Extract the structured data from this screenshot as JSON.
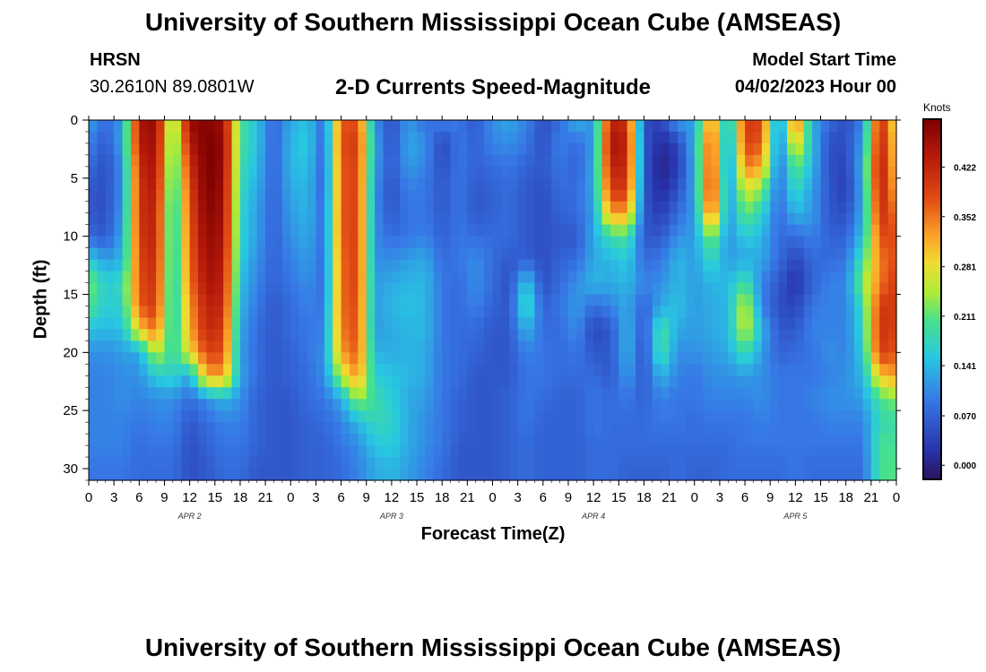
{
  "page": {
    "title": "University of Southern Mississippi Ocean Cube (AMSEAS)",
    "footer_title": "University of Southern Mississippi Ocean Cube (AMSEAS)",
    "station": "HRSN",
    "coordinates": "30.2610N  89.0801W",
    "subtitle": "2-D Currents Speed-Magnitude",
    "model_start_label": "Model Start Time",
    "model_start_value": "04/02/2023 Hour 00"
  },
  "chart_data": {
    "type": "heatmap",
    "title": "2-D Currents Speed-Magnitude",
    "xlabel": "Forecast Time(Z)",
    "ylabel": "Depth (ft)",
    "xlim": [
      0,
      96
    ],
    "ylim": [
      0,
      31
    ],
    "x_ticks": [
      "0",
      "3",
      "6",
      "9",
      "12",
      "15",
      "18",
      "21",
      "0",
      "3",
      "6",
      "9",
      "12",
      "15",
      "18",
      "21",
      "0",
      "3",
      "6",
      "9",
      "12",
      "15",
      "18",
      "21",
      "0",
      "3",
      "6",
      "9",
      "12",
      "15",
      "18",
      "21",
      "0"
    ],
    "y_ticks": [
      "0",
      "5",
      "10",
      "15",
      "20",
      "25",
      "30"
    ],
    "date_labels": [
      {
        "hour": 12,
        "text": "APR 2"
      },
      {
        "hour": 36,
        "text": "APR 3"
      },
      {
        "hour": 60,
        "text": "APR 4"
      },
      {
        "hour": 84,
        "text": "APR 5"
      }
    ],
    "colorbar": {
      "unit": "Knots",
      "range": [
        -0.02,
        0.49
      ],
      "ticks": [
        "0.000",
        "0.070",
        "0.141",
        "0.211",
        "0.281",
        "0.352",
        "0.422"
      ]
    },
    "grid_hours": [
      0,
      2,
      4,
      6,
      8,
      10,
      12,
      14,
      16,
      18,
      20,
      22,
      24,
      26,
      28,
      30,
      32,
      34,
      36,
      38,
      40,
      42,
      44,
      46,
      48,
      50,
      52,
      54,
      56,
      58,
      60,
      62,
      64,
      66,
      68,
      70,
      72,
      74,
      76,
      78,
      80,
      82,
      84,
      86,
      88,
      90,
      92,
      94,
      96
    ],
    "grid_depths_ft": [
      0,
      2,
      4,
      6,
      8,
      10,
      12,
      14,
      16,
      18,
      20,
      22,
      24,
      26,
      28,
      30
    ],
    "grid_knots": [
      [
        0.13,
        0.08,
        0.12,
        0.45,
        0.47,
        0.2,
        0.47,
        0.48,
        0.46,
        0.2,
        0.15,
        0.07,
        0.13,
        0.15,
        0.08,
        0.37,
        0.38,
        0.11,
        0.05,
        0.12,
        0.08,
        0.1,
        0.09,
        0.06,
        0.11,
        0.13,
        0.1,
        0.05,
        0.08,
        0.14,
        0.11,
        0.43,
        0.41,
        0.05,
        0.04,
        0.12,
        0.12,
        0.36,
        0.12,
        0.4,
        0.39,
        0.08,
        0.39,
        0.13,
        0.08,
        0.05,
        0.1,
        0.43,
        0.26
      ],
      [
        0.1,
        0.06,
        0.13,
        0.44,
        0.46,
        0.18,
        0.44,
        0.49,
        0.47,
        0.2,
        0.15,
        0.07,
        0.14,
        0.16,
        0.07,
        0.38,
        0.4,
        0.13,
        0.05,
        0.13,
        0.11,
        0.04,
        0.09,
        0.07,
        0.1,
        0.11,
        0.09,
        0.05,
        0.1,
        0.08,
        0.12,
        0.45,
        0.43,
        0.06,
        0.01,
        0.04,
        0.14,
        0.4,
        0.1,
        0.39,
        0.37,
        0.08,
        0.3,
        0.15,
        0.05,
        0.05,
        0.12,
        0.44,
        0.28
      ],
      [
        0.08,
        0.05,
        0.11,
        0.42,
        0.45,
        0.17,
        0.41,
        0.49,
        0.47,
        0.19,
        0.14,
        0.07,
        0.14,
        0.15,
        0.07,
        0.37,
        0.39,
        0.12,
        0.06,
        0.12,
        0.1,
        0.05,
        0.09,
        0.07,
        0.08,
        0.09,
        0.07,
        0.06,
        0.09,
        0.07,
        0.13,
        0.43,
        0.42,
        0.06,
        0.0,
        0.03,
        0.13,
        0.41,
        0.09,
        0.35,
        0.32,
        0.08,
        0.22,
        0.14,
        0.05,
        0.04,
        0.14,
        0.45,
        0.29
      ],
      [
        0.06,
        0.05,
        0.11,
        0.41,
        0.44,
        0.16,
        0.39,
        0.49,
        0.46,
        0.18,
        0.13,
        0.07,
        0.13,
        0.14,
        0.07,
        0.37,
        0.39,
        0.11,
        0.05,
        0.1,
        0.09,
        0.06,
        0.09,
        0.06,
        0.07,
        0.08,
        0.06,
        0.05,
        0.08,
        0.08,
        0.13,
        0.4,
        0.4,
        0.06,
        0.01,
        0.05,
        0.13,
        0.42,
        0.1,
        0.27,
        0.23,
        0.08,
        0.18,
        0.12,
        0.06,
        0.03,
        0.13,
        0.44,
        0.31
      ],
      [
        0.06,
        0.05,
        0.12,
        0.41,
        0.43,
        0.15,
        0.38,
        0.48,
        0.46,
        0.17,
        0.12,
        0.07,
        0.12,
        0.14,
        0.08,
        0.37,
        0.39,
        0.11,
        0.06,
        0.09,
        0.09,
        0.06,
        0.09,
        0.06,
        0.07,
        0.08,
        0.06,
        0.05,
        0.07,
        0.08,
        0.12,
        0.33,
        0.33,
        0.06,
        0.03,
        0.08,
        0.12,
        0.38,
        0.11,
        0.22,
        0.17,
        0.08,
        0.14,
        0.12,
        0.06,
        0.05,
        0.13,
        0.42,
        0.35
      ],
      [
        0.08,
        0.06,
        0.13,
        0.4,
        0.43,
        0.15,
        0.37,
        0.47,
        0.45,
        0.17,
        0.12,
        0.07,
        0.11,
        0.13,
        0.08,
        0.37,
        0.39,
        0.11,
        0.08,
        0.09,
        0.1,
        0.07,
        0.09,
        0.08,
        0.08,
        0.08,
        0.06,
        0.05,
        0.06,
        0.06,
        0.13,
        0.19,
        0.2,
        0.06,
        0.06,
        0.11,
        0.12,
        0.24,
        0.11,
        0.16,
        0.14,
        0.08,
        0.08,
        0.1,
        0.07,
        0.07,
        0.15,
        0.38,
        0.38
      ],
      [
        0.16,
        0.12,
        0.14,
        0.39,
        0.42,
        0.15,
        0.36,
        0.46,
        0.44,
        0.16,
        0.11,
        0.07,
        0.1,
        0.12,
        0.08,
        0.36,
        0.39,
        0.11,
        0.11,
        0.12,
        0.13,
        0.08,
        0.09,
        0.11,
        0.08,
        0.06,
        0.07,
        0.05,
        0.07,
        0.08,
        0.13,
        0.14,
        0.16,
        0.08,
        0.09,
        0.14,
        0.12,
        0.18,
        0.12,
        0.13,
        0.13,
        0.08,
        0.04,
        0.08,
        0.08,
        0.09,
        0.19,
        0.35,
        0.38
      ],
      [
        0.23,
        0.16,
        0.18,
        0.38,
        0.41,
        0.15,
        0.35,
        0.45,
        0.43,
        0.15,
        0.1,
        0.07,
        0.09,
        0.11,
        0.08,
        0.36,
        0.39,
        0.12,
        0.13,
        0.14,
        0.14,
        0.09,
        0.08,
        0.11,
        0.08,
        0.05,
        0.16,
        0.05,
        0.08,
        0.11,
        0.14,
        0.13,
        0.14,
        0.1,
        0.11,
        0.14,
        0.12,
        0.14,
        0.14,
        0.2,
        0.1,
        0.06,
        0.02,
        0.07,
        0.1,
        0.1,
        0.23,
        0.35,
        0.4
      ],
      [
        0.21,
        0.16,
        0.17,
        0.37,
        0.4,
        0.15,
        0.33,
        0.43,
        0.42,
        0.14,
        0.09,
        0.06,
        0.08,
        0.1,
        0.09,
        0.36,
        0.38,
        0.12,
        0.14,
        0.15,
        0.14,
        0.09,
        0.08,
        0.1,
        0.07,
        0.06,
        0.19,
        0.07,
        0.09,
        0.12,
        0.08,
        0.1,
        0.13,
        0.07,
        0.13,
        0.15,
        0.12,
        0.13,
        0.14,
        0.27,
        0.1,
        0.05,
        0.04,
        0.09,
        0.1,
        0.1,
        0.18,
        0.4,
        0.4
      ],
      [
        0.15,
        0.14,
        0.15,
        0.3,
        0.36,
        0.16,
        0.32,
        0.42,
        0.4,
        0.13,
        0.08,
        0.06,
        0.08,
        0.09,
        0.1,
        0.35,
        0.38,
        0.12,
        0.13,
        0.14,
        0.14,
        0.09,
        0.08,
        0.08,
        0.06,
        0.06,
        0.14,
        0.08,
        0.08,
        0.11,
        0.04,
        0.06,
        0.14,
        0.06,
        0.2,
        0.13,
        0.12,
        0.13,
        0.14,
        0.27,
        0.14,
        0.06,
        0.06,
        0.1,
        0.1,
        0.1,
        0.17,
        0.41,
        0.39
      ],
      [
        0.11,
        0.11,
        0.12,
        0.13,
        0.26,
        0.18,
        0.28,
        0.39,
        0.38,
        0.12,
        0.08,
        0.06,
        0.07,
        0.09,
        0.11,
        0.33,
        0.37,
        0.14,
        0.13,
        0.14,
        0.13,
        0.09,
        0.08,
        0.07,
        0.06,
        0.06,
        0.1,
        0.09,
        0.08,
        0.09,
        0.06,
        0.06,
        0.14,
        0.05,
        0.2,
        0.11,
        0.11,
        0.12,
        0.13,
        0.19,
        0.12,
        0.07,
        0.08,
        0.09,
        0.11,
        0.1,
        0.16,
        0.4,
        0.37
      ],
      [
        0.1,
        0.1,
        0.11,
        0.11,
        0.16,
        0.17,
        0.13,
        0.32,
        0.33,
        0.13,
        0.08,
        0.06,
        0.07,
        0.08,
        0.11,
        0.25,
        0.34,
        0.16,
        0.15,
        0.14,
        0.13,
        0.09,
        0.08,
        0.06,
        0.06,
        0.06,
        0.09,
        0.09,
        0.08,
        0.08,
        0.08,
        0.06,
        0.12,
        0.06,
        0.14,
        0.1,
        0.09,
        0.11,
        0.11,
        0.12,
        0.11,
        0.09,
        0.09,
        0.09,
        0.1,
        0.11,
        0.14,
        0.3,
        0.33
      ],
      [
        0.1,
        0.1,
        0.11,
        0.1,
        0.11,
        0.11,
        0.08,
        0.11,
        0.14,
        0.11,
        0.07,
        0.06,
        0.06,
        0.08,
        0.09,
        0.13,
        0.24,
        0.19,
        0.16,
        0.13,
        0.12,
        0.09,
        0.07,
        0.06,
        0.06,
        0.07,
        0.09,
        0.08,
        0.07,
        0.07,
        0.09,
        0.08,
        0.09,
        0.07,
        0.1,
        0.09,
        0.09,
        0.1,
        0.1,
        0.1,
        0.11,
        0.09,
        0.09,
        0.1,
        0.11,
        0.11,
        0.12,
        0.2,
        0.23
      ],
      [
        0.1,
        0.1,
        0.1,
        0.09,
        0.1,
        0.1,
        0.06,
        0.08,
        0.1,
        0.1,
        0.07,
        0.06,
        0.06,
        0.07,
        0.08,
        0.1,
        0.14,
        0.18,
        0.17,
        0.13,
        0.11,
        0.09,
        0.07,
        0.06,
        0.06,
        0.07,
        0.09,
        0.07,
        0.07,
        0.07,
        0.09,
        0.08,
        0.08,
        0.08,
        0.09,
        0.09,
        0.08,
        0.09,
        0.09,
        0.09,
        0.1,
        0.09,
        0.09,
        0.09,
        0.1,
        0.1,
        0.1,
        0.18,
        0.19
      ],
      [
        0.1,
        0.1,
        0.1,
        0.08,
        0.09,
        0.09,
        0.05,
        0.07,
        0.09,
        0.09,
        0.07,
        0.06,
        0.06,
        0.07,
        0.07,
        0.09,
        0.11,
        0.15,
        0.16,
        0.13,
        0.11,
        0.09,
        0.06,
        0.06,
        0.06,
        0.07,
        0.08,
        0.07,
        0.07,
        0.07,
        0.08,
        0.08,
        0.08,
        0.08,
        0.08,
        0.08,
        0.08,
        0.08,
        0.08,
        0.09,
        0.09,
        0.09,
        0.09,
        0.09,
        0.09,
        0.09,
        0.09,
        0.2,
        0.2
      ],
      [
        0.09,
        0.09,
        0.09,
        0.08,
        0.08,
        0.08,
        0.05,
        0.06,
        0.08,
        0.08,
        0.06,
        0.06,
        0.06,
        0.07,
        0.07,
        0.08,
        0.1,
        0.13,
        0.14,
        0.12,
        0.1,
        0.08,
        0.06,
        0.06,
        0.06,
        0.07,
        0.08,
        0.07,
        0.07,
        0.07,
        0.08,
        0.08,
        0.07,
        0.07,
        0.07,
        0.08,
        0.07,
        0.07,
        0.08,
        0.08,
        0.08,
        0.08,
        0.09,
        0.08,
        0.08,
        0.08,
        0.08,
        0.2,
        0.21
      ]
    ]
  }
}
